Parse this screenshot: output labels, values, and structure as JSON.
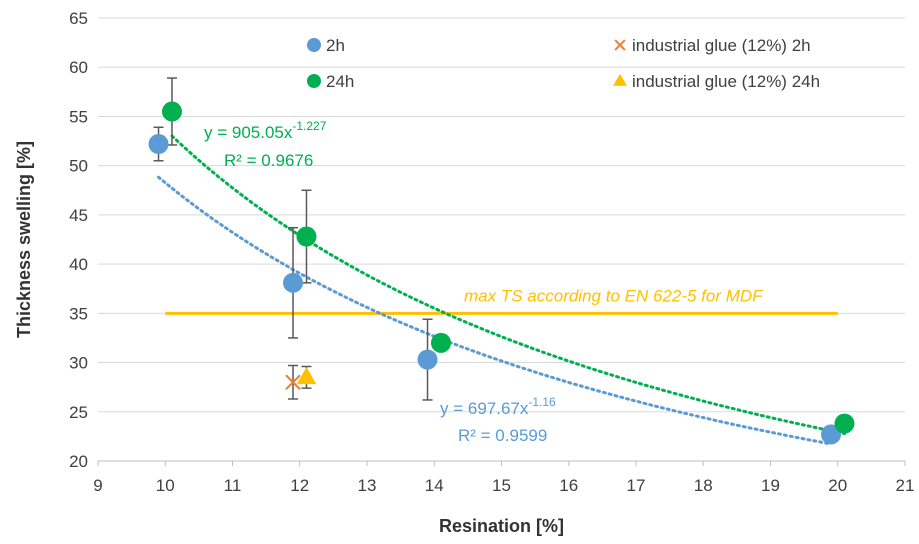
{
  "chart_data": {
    "type": "scatter",
    "xlabel": "Resination [%]",
    "ylabel": "Thickness swelling [%]",
    "xlim": [
      9,
      21
    ],
    "ylim": [
      20,
      65
    ],
    "xticks": [
      9,
      10,
      11,
      12,
      13,
      14,
      15,
      16,
      17,
      18,
      19,
      20,
      21
    ],
    "yticks": [
      20,
      25,
      30,
      35,
      40,
      45,
      50,
      55,
      60,
      65
    ],
    "grid": "horizontal",
    "series": [
      {
        "name": "2h",
        "marker": "circle",
        "color": "#5b9bd5",
        "x": [
          9.9,
          11.9,
          13.9,
          19.9
        ],
        "y": [
          52.2,
          38.1,
          30.3,
          22.7
        ],
        "err": [
          1.7,
          5.6,
          4.1,
          null
        ]
      },
      {
        "name": "24h",
        "marker": "circle",
        "color": "#00b050",
        "x": [
          10.1,
          12.1,
          14.1,
          20.1
        ],
        "y": [
          55.5,
          42.8,
          32.0,
          23.8
        ],
        "err": [
          3.4,
          4.7,
          null,
          null
        ]
      },
      {
        "name": "industrial glue (12%) 2h",
        "marker": "x",
        "color": "#ed7d31",
        "x": [
          11.9
        ],
        "y": [
          28.0
        ],
        "err": [
          1.7
        ]
      },
      {
        "name": "industrial glue (12%) 24h",
        "marker": "triangle",
        "color": "#ffc000",
        "x": [
          12.1
        ],
        "y": [
          28.5
        ],
        "err": [
          1.1
        ]
      }
    ],
    "trendlines": [
      {
        "series": "2h",
        "a": 697.67,
        "b": -1.16,
        "x_from": 9.9,
        "x_to": 19.9,
        "color": "#5b9bd5",
        "equation_base": "y = 697.67x",
        "equation_exp": "-1.16",
        "r2": "R² = 0.9599"
      },
      {
        "series": "24h",
        "a": 905.05,
        "b": -1.227,
        "x_from": 10.1,
        "x_to": 20.1,
        "color": "#00b050",
        "equation_base": "y = 905.05x",
        "equation_exp": "-1.227",
        "r2": "R² = 0.9676"
      }
    ],
    "reference_line": {
      "y": 35,
      "x_from": 10,
      "x_to": 20,
      "color": "#ffc000",
      "label": "max TS according to EN 622-5 for MDF"
    },
    "legend_placement": "top"
  }
}
